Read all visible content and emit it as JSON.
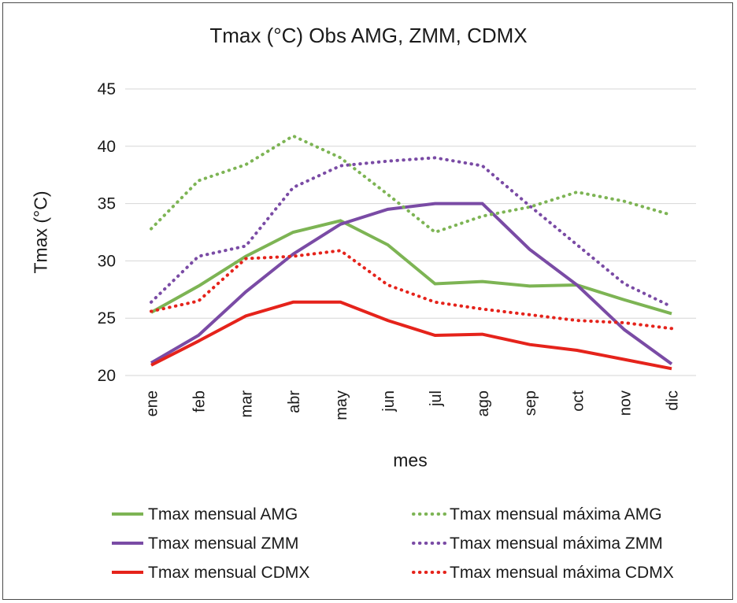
{
  "chart_data": {
    "type": "line",
    "title": "Tmax (°C) Obs AMG, ZMM, CDMX",
    "xlabel": "mes",
    "ylabel": "Tmax (°C)",
    "categories": [
      "ene",
      "feb",
      "mar",
      "abr",
      "may",
      "jun",
      "jul",
      "ago",
      "sep",
      "oct",
      "nov",
      "dic"
    ],
    "ylim": [
      20,
      45
    ],
    "yticks": [
      20,
      25,
      30,
      35,
      40,
      45
    ],
    "grid": true,
    "legend_position": "bottom-two-columns",
    "accent_colors": {
      "amg_green": "#7db454",
      "zmm_purple": "#7a4ba5",
      "cdmx_red": "#e5231b"
    },
    "series": [
      {
        "name": "Tmax mensual AMG",
        "color": "#7db454",
        "dash": "solid",
        "values": [
          25.5,
          27.8,
          30.4,
          32.5,
          33.5,
          31.4,
          28.0,
          28.2,
          27.8,
          27.9,
          26.6,
          25.4
        ]
      },
      {
        "name": "Tmax mensual ZMM",
        "color": "#7a4ba5",
        "dash": "solid",
        "values": [
          21.1,
          23.5,
          27.3,
          30.6,
          33.2,
          34.5,
          35.0,
          35.0,
          31.0,
          27.9,
          24.0,
          21.0
        ]
      },
      {
        "name": "Tmax mensual CDMX",
        "color": "#e5231b",
        "dash": "solid",
        "values": [
          20.9,
          23.0,
          25.2,
          26.4,
          26.4,
          24.8,
          23.5,
          23.6,
          22.7,
          22.2,
          21.4,
          20.6
        ]
      },
      {
        "name": "Tmax mensual máxima AMG",
        "color": "#7db454",
        "dash": "dotted",
        "values": [
          32.8,
          37.0,
          38.4,
          40.9,
          39.0,
          35.8,
          32.5,
          33.9,
          34.7,
          36.0,
          35.2,
          34.0
        ]
      },
      {
        "name": "Tmax mensual máxima ZMM",
        "color": "#7a4ba5",
        "dash": "dotted",
        "values": [
          26.4,
          30.4,
          31.3,
          36.4,
          38.3,
          38.7,
          39.0,
          38.3,
          34.8,
          31.4,
          28.0,
          26.0
        ]
      },
      {
        "name": "Tmax mensual máxima CDMX",
        "color": "#e5231b",
        "dash": "dotted",
        "values": [
          25.6,
          26.5,
          30.2,
          30.4,
          30.9,
          27.9,
          26.4,
          25.8,
          25.3,
          24.8,
          24.6,
          24.1
        ]
      }
    ]
  }
}
